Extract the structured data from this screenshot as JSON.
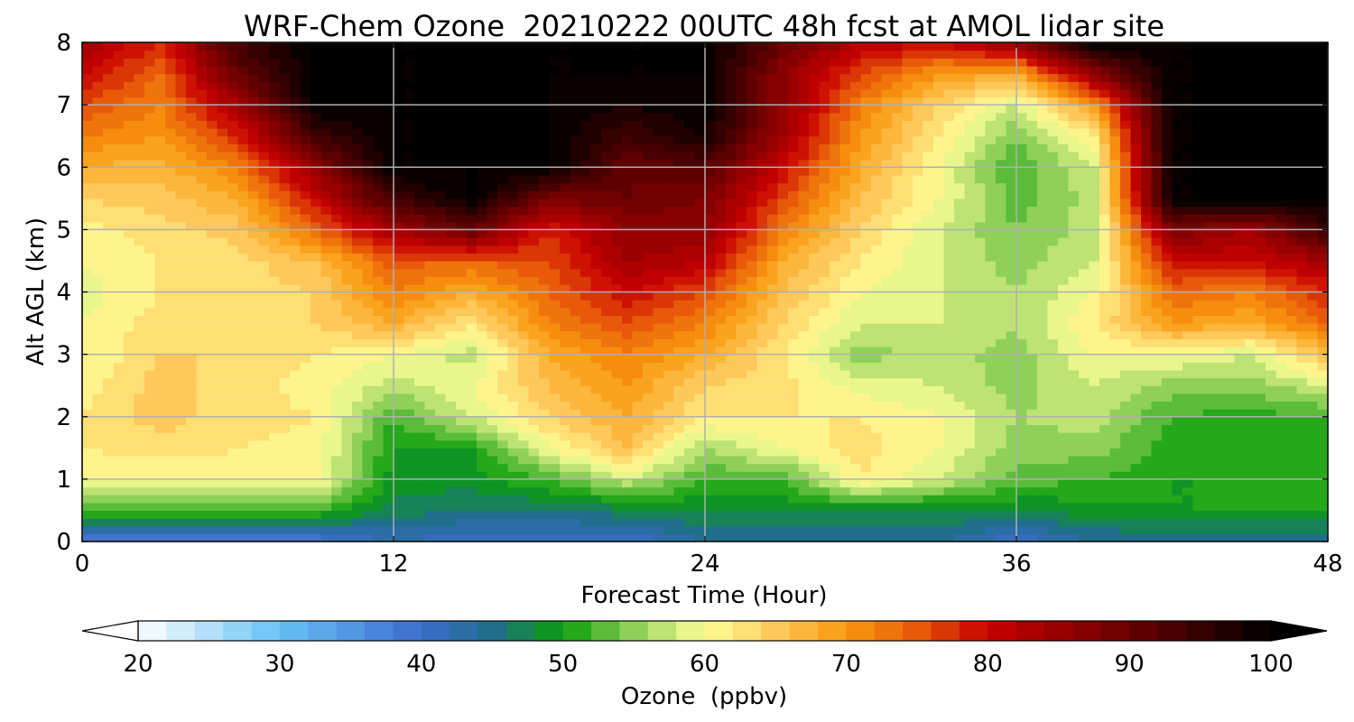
{
  "chart_data": {
    "type": "heatmap",
    "title": "WRF-Chem Ozone  20210222 00UTC 48h fcst at AMOL lidar site",
    "xlabel": "Forecast Time (Hour)",
    "ylabel": "Alt AGL (km)",
    "xlim": [
      0,
      48
    ],
    "ylim": [
      0,
      8
    ],
    "x_ticks": [
      0,
      12,
      24,
      36,
      48
    ],
    "y_ticks": [
      0,
      1,
      2,
      3,
      4,
      5,
      6,
      7,
      8
    ],
    "grid": true,
    "colorbar": {
      "label": "Ozone  (ppbv)",
      "min": 20,
      "max": 100,
      "ticks": [
        20,
        30,
        40,
        50,
        60,
        70,
        80,
        90,
        100
      ],
      "extend": "both",
      "under_color": "#ffffff",
      "over_color": "#000000",
      "color_stops": [
        {
          "value": 20,
          "color": "#ffffff"
        },
        {
          "value": 30,
          "color": "#66c2f5"
        },
        {
          "value": 40,
          "color": "#3d6bcc"
        },
        {
          "value": 45,
          "color": "#1f6e8c"
        },
        {
          "value": 50,
          "color": "#0a9e0a"
        },
        {
          "value": 55,
          "color": "#8fd05a"
        },
        {
          "value": 60,
          "color": "#ffff99"
        },
        {
          "value": 65,
          "color": "#ffc85a"
        },
        {
          "value": 70,
          "color": "#f99a10"
        },
        {
          "value": 75,
          "color": "#e85a0a"
        },
        {
          "value": 80,
          "color": "#c80000"
        },
        {
          "value": 90,
          "color": "#6a0000"
        },
        {
          "value": 100,
          "color": "#000000"
        }
      ]
    },
    "x": [
      0,
      3,
      6,
      9,
      12,
      15,
      18,
      21,
      24,
      27,
      30,
      33,
      36,
      39,
      42,
      45,
      48
    ],
    "y": [
      0,
      0.5,
      1,
      1.5,
      2,
      2.5,
      3,
      3.5,
      4,
      4.5,
      5,
      5.5,
      6,
      6.5,
      7,
      7.5,
      8
    ],
    "z": [
      [
        36,
        38,
        38,
        38,
        42,
        40,
        40,
        40,
        44,
        44,
        44,
        44,
        40,
        44,
        44,
        44,
        44
      ],
      [
        52,
        52,
        52,
        52,
        47,
        46,
        46,
        47,
        48,
        48,
        48,
        48,
        48,
        49,
        50,
        50,
        50
      ],
      [
        60,
        60,
        61,
        61,
        49,
        49,
        52,
        58,
        52,
        52,
        62,
        58,
        53,
        52,
        50,
        50,
        50
      ],
      [
        62,
        63,
        62,
        61,
        50,
        50,
        60,
        66,
        56,
        60,
        63,
        60,
        55,
        55,
        51,
        51,
        51
      ],
      [
        62,
        65,
        63,
        62,
        52,
        58,
        64,
        68,
        62,
        62,
        62,
        60,
        56,
        57,
        52,
        51,
        52
      ],
      [
        61,
        65,
        63,
        61,
        57,
        60,
        66,
        70,
        64,
        63,
        59,
        58,
        55,
        58,
        55,
        55,
        58
      ],
      [
        60,
        64,
        64,
        62,
        60,
        57,
        68,
        72,
        68,
        62,
        55,
        57,
        55,
        60,
        60,
        58,
        66
      ],
      [
        60,
        63,
        64,
        64,
        68,
        62,
        72,
        76,
        72,
        64,
        58,
        58,
        56,
        62,
        70,
        68,
        74
      ],
      [
        59,
        62,
        63,
        64,
        72,
        68,
        74,
        80,
        76,
        66,
        60,
        58,
        56,
        60,
        74,
        72,
        78
      ],
      [
        60,
        62,
        63,
        66,
        75,
        74,
        76,
        84,
        82,
        68,
        62,
        58,
        55,
        58,
        80,
        80,
        84
      ],
      [
        61,
        63,
        65,
        74,
        84,
        90,
        78,
        86,
        86,
        72,
        64,
        58,
        54,
        57,
        88,
        84,
        95
      ],
      [
        64,
        65,
        68,
        80,
        94,
        100,
        88,
        90,
        88,
        76,
        66,
        60,
        53,
        57,
        100,
        100,
        100
      ],
      [
        68,
        67,
        72,
        86,
        100,
        100,
        100,
        90,
        92,
        80,
        68,
        60,
        52,
        58,
        100,
        100,
        100
      ],
      [
        72,
        70,
        78,
        94,
        100,
        100,
        100,
        94,
        98,
        84,
        70,
        62,
        54,
        62,
        100,
        100,
        100
      ],
      [
        76,
        72,
        84,
        100,
        100,
        100,
        100,
        98,
        100,
        86,
        72,
        64,
        58,
        70,
        100,
        100,
        100
      ],
      [
        80,
        74,
        90,
        100,
        100,
        100,
        100,
        100,
        100,
        86,
        76,
        70,
        68,
        86,
        100,
        100,
        100
      ],
      [
        84,
        78,
        94,
        100,
        100,
        100,
        100,
        100,
        100,
        90,
        82,
        80,
        86,
        100,
        100,
        100,
        100
      ]
    ]
  }
}
